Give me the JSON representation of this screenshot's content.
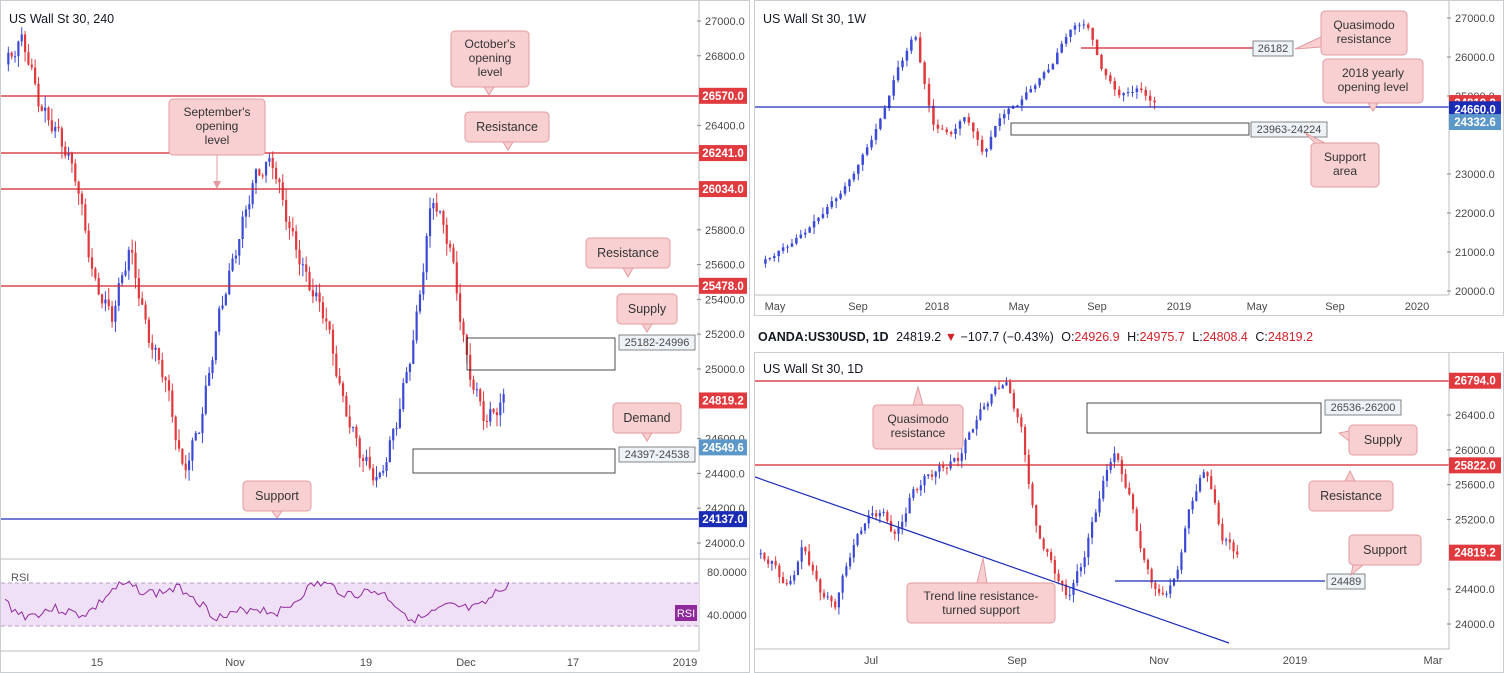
{
  "colors": {
    "up": "#3b4ad6",
    "down": "#e0393e",
    "resistance": "#d2232a",
    "support": "#1a2bb5",
    "callout_bg": "#f8d0d2",
    "callout_border": "#e39ba0",
    "zone_border": "#222222",
    "rsi_line": "#8f2a9c",
    "rsi_bg": "#efe0f7",
    "price_tag": "#e0393e"
  },
  "panel_4h": {
    "title": "US Wall St 30, 240",
    "y_ticks": [
      "27000.0",
      "26800.0",
      "26400.0",
      "25800.0",
      "25600.0",
      "25400.0",
      "25200.0",
      "25000.0",
      "24600.0",
      "24400.0",
      "24200.0",
      "24000.0"
    ],
    "x_labels": [
      "15",
      "Nov",
      "19",
      "Dec",
      "17",
      "2019"
    ],
    "price_tags": [
      {
        "label": "26570.0",
        "value": 26570,
        "color": "#e0393e"
      },
      {
        "label": "26241.0",
        "value": 26241,
        "color": "#e0393e"
      },
      {
        "label": "26034.0",
        "value": 26034,
        "color": "#e0393e"
      },
      {
        "label": "25478.0",
        "value": 25478,
        "color": "#e0393e"
      },
      {
        "label": "24819.2",
        "value": 24819.2,
        "color": "#e0393e"
      },
      {
        "label": "24549.6",
        "value": 24549.6,
        "color": "#5b97c9"
      },
      {
        "label": "24137.0",
        "value": 24137,
        "color": "#1a2bb5"
      }
    ],
    "zones": [
      {
        "label": "25182-24996",
        "top": 25182,
        "bottom": 24996
      },
      {
        "label": "24397-24538",
        "top": 24538,
        "bottom": 24397
      }
    ],
    "callouts": {
      "october": "October's opening level",
      "september": "September's opening level",
      "resistance_top": "Resistance",
      "resistance_mid": "Resistance",
      "supply": "Supply",
      "demand": "Demand",
      "support": "Support"
    },
    "rsi": {
      "label": "RSI",
      "ticks": [
        "80.0000",
        "40.0000"
      ],
      "tag": "RSI"
    }
  },
  "panel_1w": {
    "title": "US Wall St 30, 1W",
    "y_ticks": [
      "27000.0",
      "26000.0",
      "25000.0",
      "23000.0",
      "22000.0",
      "21000.0",
      "20000.0"
    ],
    "x_labels": [
      "May",
      "Sep",
      "2018",
      "May",
      "Sep",
      "2019",
      "May",
      "Sep",
      "2020"
    ],
    "price_tags": [
      {
        "label": "24819.2",
        "value": 24819.2,
        "color": "#e0393e"
      },
      {
        "label": "24660.0",
        "value": 24660,
        "color": "#1a2bb5"
      },
      {
        "label": "24332.6",
        "value": 24332.6,
        "color": "#5b97c9"
      }
    ],
    "level_label": "26182",
    "zone_label": "23963-24224",
    "callouts": {
      "quasimodo": "Quasimodo resistance",
      "yearly": "2018 yearly opening level",
      "support_area": "Support area"
    }
  },
  "panel_1d": {
    "header": {
      "symbol": "OANDA:US30USD, 1D",
      "last": "24819.2",
      "change": "−107.7 (−0.43%)",
      "o_label": "O:",
      "o": "24926.9",
      "h_label": "H:",
      "h": "24975.7",
      "l_label": "L:",
      "l": "24808.4",
      "c_label": "C:",
      "c": "24819.2"
    },
    "title": "US Wall St 30, 1D",
    "y_ticks": [
      "26400.0",
      "26000.0",
      "25600.0",
      "25200.0",
      "24400.0",
      "24000.0"
    ],
    "x_labels": [
      "Jul",
      "Sep",
      "Nov",
      "2019",
      "Mar"
    ],
    "price_tags": [
      {
        "label": "26794.0",
        "value": 26794,
        "color": "#e0393e"
      },
      {
        "label": "25822.0",
        "value": 25822,
        "color": "#e0393e"
      },
      {
        "label": "24819.2",
        "value": 24819.2,
        "color": "#e0393e"
      }
    ],
    "zone_label": "26536-26200",
    "support_label": "24489",
    "callouts": {
      "quasimodo": "Quasimodo resistance",
      "supply": "Supply",
      "resistance": "Resistance",
      "support": "Support",
      "trendline": "Trend line resistance-turned support"
    }
  }
}
